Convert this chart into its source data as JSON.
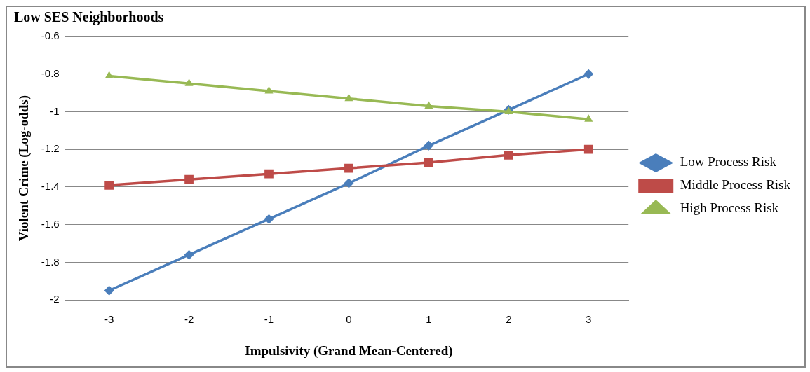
{
  "chart_data": {
    "type": "line",
    "title": "Low SES Neighborhoods",
    "xlabel": "Impulsivity (Grand Mean-Centered)",
    "ylabel": "Violent Crime (Log-odds)",
    "categories": [
      "-3",
      "-2",
      "-1",
      "0",
      "1",
      "2",
      "3"
    ],
    "series": [
      {
        "name": "Low Process Risk",
        "color": "#4a7ebb",
        "marker": "diamond",
        "values": [
          -1.95,
          -1.76,
          -1.57,
          -1.38,
          -1.18,
          -0.99,
          -0.8
        ]
      },
      {
        "name": "Middle Process Risk",
        "color": "#be4b48",
        "marker": "square",
        "values": [
          -1.39,
          -1.36,
          -1.33,
          -1.3,
          -1.27,
          -1.23,
          -1.2
        ]
      },
      {
        "name": "High Process Risk",
        "color": "#98b954",
        "marker": "triangle",
        "values": [
          -0.81,
          -0.85,
          -0.89,
          -0.93,
          -0.97,
          -1.0,
          -1.04
        ]
      }
    ],
    "ylim": [
      -2,
      -0.6
    ],
    "yticks": [
      -2,
      -1.8,
      -1.6,
      -1.4,
      -1.2,
      -1,
      -0.8,
      -0.6
    ],
    "grid": "y",
    "legend": "right",
    "line_style": "solid"
  }
}
